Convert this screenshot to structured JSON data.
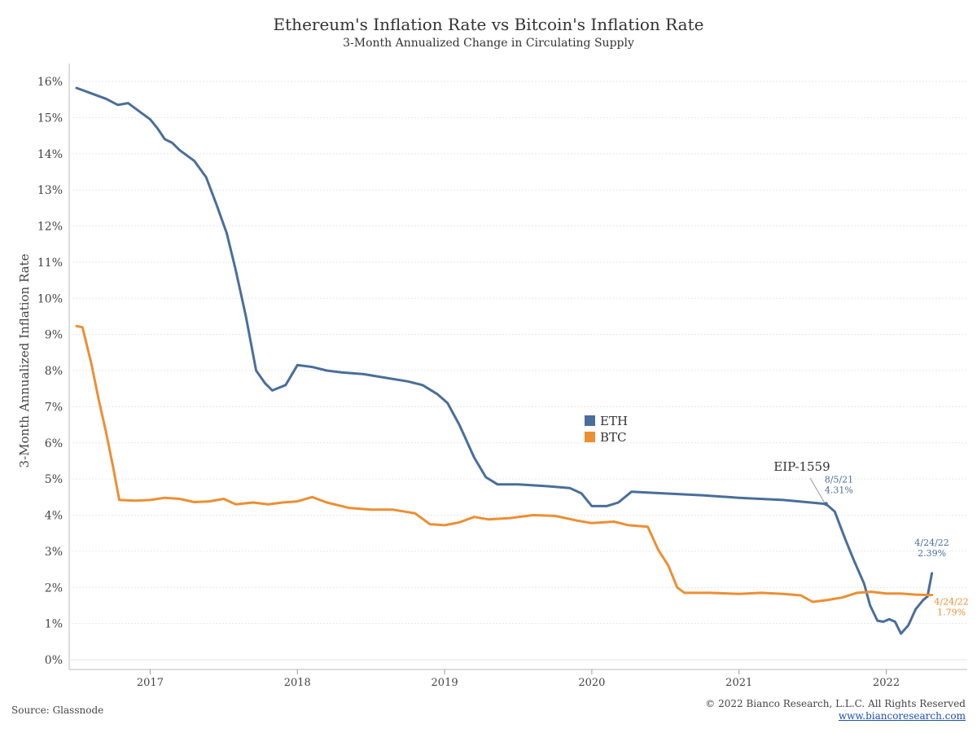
{
  "chart_data": {
    "type": "line",
    "title": "Ethereum's Inflation Rate vs Bitcoin's Inflation Rate",
    "subtitle": "3-Month Annualized Change in Circulating Supply",
    "ylabel": "3-Month Annualized Inflation Rate",
    "xlabel": "",
    "ylim": [
      0,
      16.5
    ],
    "xlim": [
      2016.45,
      2022.55
    ],
    "y_ticks": [
      "0%",
      "1%",
      "2%",
      "3%",
      "4%",
      "5%",
      "6%",
      "7%",
      "8%",
      "9%",
      "10%",
      "11%",
      "12%",
      "13%",
      "14%",
      "15%",
      "16%"
    ],
    "x_ticks": [
      {
        "x": 2017.0,
        "label": "2017"
      },
      {
        "x": 2018.0,
        "label": "2018"
      },
      {
        "x": 2019.0,
        "label": "2019"
      },
      {
        "x": 2020.0,
        "label": "2020"
      },
      {
        "x": 2021.0,
        "label": "2021"
      },
      {
        "x": 2022.0,
        "label": "2022"
      }
    ],
    "grid": true,
    "legend": {
      "position": "center",
      "entries": [
        "ETH",
        "BTC"
      ]
    },
    "series": [
      {
        "name": "ETH",
        "color": "#4a6e9a",
        "points": [
          [
            2016.5,
            15.82
          ],
          [
            2016.58,
            15.7
          ],
          [
            2016.7,
            15.52
          ],
          [
            2016.78,
            15.35
          ],
          [
            2016.85,
            15.4
          ],
          [
            2016.95,
            15.1
          ],
          [
            2017.0,
            14.95
          ],
          [
            2017.05,
            14.7
          ],
          [
            2017.1,
            14.4
          ],
          [
            2017.15,
            14.3
          ],
          [
            2017.2,
            14.1
          ],
          [
            2017.3,
            13.8
          ],
          [
            2017.38,
            13.35
          ],
          [
            2017.45,
            12.6
          ],
          [
            2017.52,
            11.8
          ],
          [
            2017.58,
            10.8
          ],
          [
            2017.65,
            9.5
          ],
          [
            2017.72,
            8.0
          ],
          [
            2017.78,
            7.65
          ],
          [
            2017.83,
            7.45
          ],
          [
            2017.92,
            7.6
          ],
          [
            2018.0,
            8.15
          ],
          [
            2018.1,
            8.1
          ],
          [
            2018.2,
            8.0
          ],
          [
            2018.3,
            7.95
          ],
          [
            2018.45,
            7.9
          ],
          [
            2018.6,
            7.8
          ],
          [
            2018.75,
            7.7
          ],
          [
            2018.85,
            7.6
          ],
          [
            2018.95,
            7.35
          ],
          [
            2019.02,
            7.1
          ],
          [
            2019.1,
            6.5
          ],
          [
            2019.2,
            5.6
          ],
          [
            2019.28,
            5.05
          ],
          [
            2019.36,
            4.85
          ],
          [
            2019.5,
            4.85
          ],
          [
            2019.7,
            4.8
          ],
          [
            2019.85,
            4.75
          ],
          [
            2019.93,
            4.6
          ],
          [
            2020.0,
            4.25
          ],
          [
            2020.1,
            4.25
          ],
          [
            2020.18,
            4.35
          ],
          [
            2020.27,
            4.65
          ],
          [
            2020.5,
            4.6
          ],
          [
            2020.75,
            4.55
          ],
          [
            2021.0,
            4.48
          ],
          [
            2021.3,
            4.42
          ],
          [
            2021.59,
            4.31
          ],
          [
            2021.65,
            4.1
          ],
          [
            2021.72,
            3.35
          ],
          [
            2021.78,
            2.75
          ],
          [
            2021.85,
            2.1
          ],
          [
            2021.89,
            1.5
          ],
          [
            2021.94,
            1.08
          ],
          [
            2021.98,
            1.05
          ],
          [
            2022.02,
            1.12
          ],
          [
            2022.06,
            1.05
          ],
          [
            2022.1,
            0.72
          ],
          [
            2022.15,
            0.95
          ],
          [
            2022.2,
            1.4
          ],
          [
            2022.25,
            1.65
          ],
          [
            2022.28,
            1.75
          ],
          [
            2022.31,
            2.39
          ]
        ]
      },
      {
        "name": "BTC",
        "color": "#ec8f33",
        "points": [
          [
            2016.5,
            9.23
          ],
          [
            2016.54,
            9.2
          ],
          [
            2016.6,
            8.2
          ],
          [
            2016.65,
            7.2
          ],
          [
            2016.7,
            6.3
          ],
          [
            2016.75,
            5.3
          ],
          [
            2016.79,
            4.42
          ],
          [
            2016.9,
            4.4
          ],
          [
            2017.0,
            4.42
          ],
          [
            2017.1,
            4.48
          ],
          [
            2017.2,
            4.45
          ],
          [
            2017.3,
            4.36
          ],
          [
            2017.4,
            4.38
          ],
          [
            2017.5,
            4.45
          ],
          [
            2017.58,
            4.3
          ],
          [
            2017.7,
            4.35
          ],
          [
            2017.8,
            4.3
          ],
          [
            2017.9,
            4.35
          ],
          [
            2018.0,
            4.38
          ],
          [
            2018.1,
            4.5
          ],
          [
            2018.2,
            4.35
          ],
          [
            2018.35,
            4.2
          ],
          [
            2018.5,
            4.15
          ],
          [
            2018.65,
            4.15
          ],
          [
            2018.8,
            4.05
          ],
          [
            2018.9,
            3.75
          ],
          [
            2019.0,
            3.72
          ],
          [
            2019.1,
            3.8
          ],
          [
            2019.2,
            3.95
          ],
          [
            2019.3,
            3.88
          ],
          [
            2019.45,
            3.92
          ],
          [
            2019.6,
            4.0
          ],
          [
            2019.75,
            3.98
          ],
          [
            2019.9,
            3.85
          ],
          [
            2020.0,
            3.78
          ],
          [
            2020.15,
            3.82
          ],
          [
            2020.25,
            3.72
          ],
          [
            2020.38,
            3.68
          ],
          [
            2020.45,
            3.05
          ],
          [
            2020.52,
            2.6
          ],
          [
            2020.58,
            2.0
          ],
          [
            2020.63,
            1.85
          ],
          [
            2020.8,
            1.85
          ],
          [
            2021.0,
            1.82
          ],
          [
            2021.15,
            1.85
          ],
          [
            2021.3,
            1.82
          ],
          [
            2021.42,
            1.78
          ],
          [
            2021.5,
            1.6
          ],
          [
            2021.6,
            1.65
          ],
          [
            2021.7,
            1.72
          ],
          [
            2021.8,
            1.85
          ],
          [
            2021.9,
            1.88
          ],
          [
            2022.0,
            1.83
          ],
          [
            2022.1,
            1.83
          ],
          [
            2022.2,
            1.8
          ],
          [
            2022.31,
            1.79
          ]
        ]
      }
    ],
    "annotations": [
      {
        "text": "EIP-1559",
        "x": 2021.59,
        "y": 4.31
      },
      {
        "series": "ETH",
        "date": "8/5/21",
        "value": "4.31%",
        "x": 2021.59,
        "y": 4.31
      },
      {
        "series": "ETH",
        "date": "4/24/22",
        "value": "2.39%",
        "x": 2022.31,
        "y": 2.39
      },
      {
        "series": "BTC",
        "date": "4/24/22",
        "value": "1.79%",
        "x": 2022.31,
        "y": 1.79
      }
    ]
  },
  "footer": {
    "source": "Source: Glassnode",
    "copyright": "© 2022 Bianco Research, L.L.C. All Rights Reserved",
    "website": "www.biancoresearch.com"
  }
}
